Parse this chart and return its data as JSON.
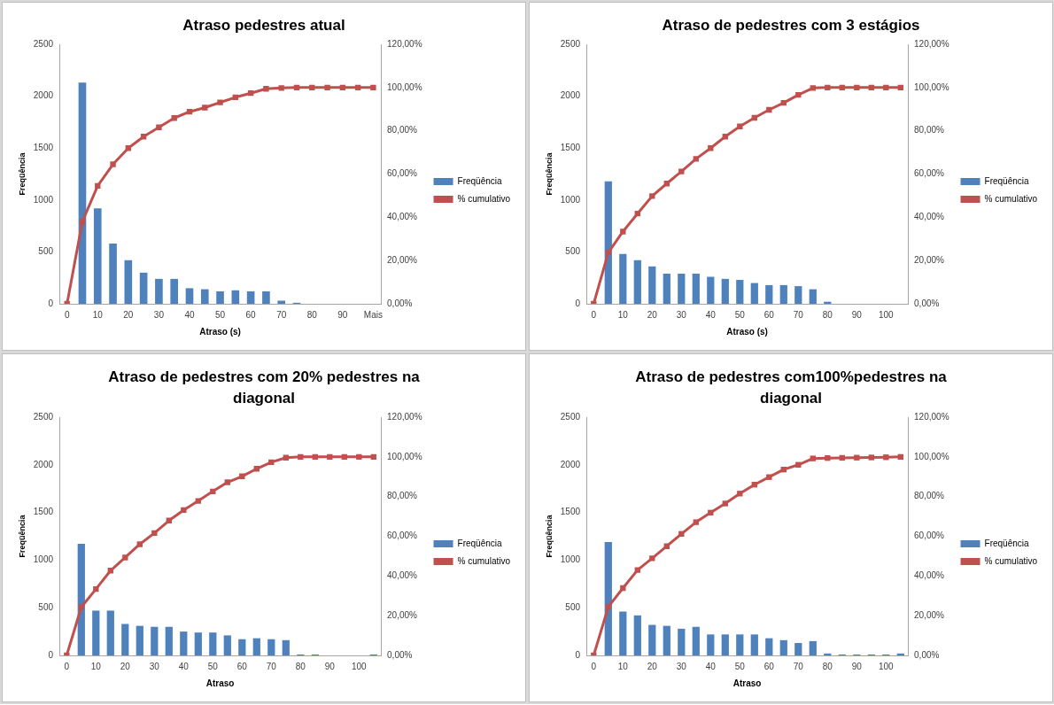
{
  "chart_data": [
    {
      "type": "bar",
      "title": "Atraso pedestres atual",
      "xlabel": "Atraso (s)",
      "ylabel": "Freqüência",
      "categories": [
        "0",
        null,
        "10",
        null,
        "20",
        null,
        "30",
        null,
        "40",
        null,
        "50",
        null,
        "60",
        null,
        "70",
        null,
        "80",
        null,
        "90",
        null,
        "Mais"
      ],
      "ylim": [
        0,
        2500
      ],
      "yticks": [
        0,
        500,
        1000,
        1500,
        2000,
        2500
      ],
      "y2lim": [
        0,
        120
      ],
      "y2ticks": [
        {
          "value": 0,
          "label": "0,00%"
        },
        {
          "value": 20,
          "label": "20,00%"
        },
        {
          "value": 40,
          "label": "40,00%"
        },
        {
          "value": 60,
          "label": "60,00%"
        },
        {
          "value": 80,
          "label": "80,00%"
        },
        {
          "value": 100,
          "label": "100,00%"
        },
        {
          "value": 120,
          "label": "120,00%"
        }
      ],
      "legend": "right",
      "marker": "square",
      "series": [
        {
          "name": "Freqüência",
          "color": "#4f81bd",
          "values": [
            0,
            2130,
            920,
            580,
            420,
            300,
            240,
            240,
            150,
            140,
            120,
            130,
            120,
            120,
            30,
            10,
            0,
            0,
            0,
            0,
            0
          ]
        },
        {
          "type": "line",
          "axis": "y2",
          "name": "% cumulativo",
          "color": "#c0504d",
          "values": [
            0,
            38,
            54.5,
            64.5,
            72,
            77.3,
            81.6,
            85.9,
            88.8,
            90.7,
            93.1,
            95.5,
            97.4,
            99.4,
            99.8,
            100,
            100,
            100,
            100,
            100,
            100
          ]
        }
      ]
    },
    {
      "type": "bar",
      "title": "Atraso de pedestres com 3 estágios",
      "xlabel": "Atraso (s)",
      "ylabel": "Freqüência",
      "categories": [
        "0",
        null,
        "10",
        null,
        "20",
        null,
        "30",
        null,
        "40",
        null,
        "50",
        null,
        "60",
        null,
        "70",
        null,
        "80",
        null,
        "90",
        null,
        "100",
        null
      ],
      "ylim": [
        0,
        2500
      ],
      "yticks": [
        0,
        500,
        1000,
        1500,
        2000,
        2500
      ],
      "y2lim": [
        0,
        120
      ],
      "y2ticks": [
        {
          "value": 0,
          "label": "0,00%"
        },
        {
          "value": 20,
          "label": "20,00%"
        },
        {
          "value": 40,
          "label": "40,00%"
        },
        {
          "value": 60,
          "label": "60,00%"
        },
        {
          "value": 80,
          "label": "80,00%"
        },
        {
          "value": 100,
          "label": "100,00%"
        },
        {
          "value": 120,
          "label": "120,00%"
        }
      ],
      "legend": "right",
      "marker": "square",
      "series": [
        {
          "name": "Freqüência",
          "color": "#4f81bd",
          "values": [
            0,
            1180,
            480,
            420,
            360,
            290,
            290,
            290,
            260,
            240,
            230,
            200,
            180,
            180,
            170,
            140,
            20,
            0,
            0,
            0,
            0,
            0
          ]
        },
        {
          "type": "line",
          "axis": "y2",
          "name": "% cumulativo",
          "color": "#c0504d",
          "values": [
            0,
            23.7,
            33.4,
            41.7,
            49.8,
            55.6,
            61.2,
            67,
            72,
            77.3,
            82,
            86,
            89.7,
            92.9,
            96.6,
            99.8,
            100,
            100,
            100,
            100,
            100,
            100
          ]
        }
      ]
    },
    {
      "type": "bar",
      "title": "Atraso de pedestres com 20% pedestres na diagonal",
      "xlabel": "Atraso",
      "ylabel": "Freqüência",
      "categories": [
        "0",
        null,
        "10",
        null,
        "20",
        null,
        "30",
        null,
        "40",
        null,
        "50",
        null,
        "60",
        null,
        "70",
        null,
        "80",
        null,
        "90",
        null,
        "100",
        null
      ],
      "ylim": [
        0,
        2500
      ],
      "yticks": [
        0,
        500,
        1000,
        1500,
        2000,
        2500
      ],
      "y2lim": [
        0,
        120
      ],
      "y2ticks": [
        {
          "value": 0,
          "label": "0,00%"
        },
        {
          "value": 20,
          "label": "20,00%"
        },
        {
          "value": 40,
          "label": "40,00%"
        },
        {
          "value": 60,
          "label": "60,00%"
        },
        {
          "value": 80,
          "label": "80,00%"
        },
        {
          "value": 100,
          "label": "100,00%"
        },
        {
          "value": 120,
          "label": "120,00%"
        }
      ],
      "legend": "right",
      "marker": "square",
      "series": [
        {
          "name": "Freqüência",
          "color": "#4f81bd",
          "values": [
            0,
            1170,
            470,
            470,
            330,
            310,
            300,
            300,
            250,
            240,
            240,
            210,
            170,
            180,
            170,
            160,
            10,
            10,
            0,
            0,
            0,
            10
          ]
        },
        {
          "type": "line",
          "axis": "y2",
          "name": "% cumulativo",
          "color": "#c0504d",
          "values": [
            0,
            24.3,
            33.4,
            42.7,
            49.3,
            56,
            61.6,
            67.9,
            73.2,
            77.8,
            82.6,
            87.2,
            90.2,
            94,
            97.3,
            99.6,
            100,
            100,
            100,
            100,
            100,
            100
          ]
        }
      ]
    },
    {
      "type": "bar",
      "title": "Atraso de pedestres com100%pedestres na diagonal",
      "xlabel": "Atraso",
      "ylabel": "Freqüência",
      "categories": [
        "0",
        null,
        "10",
        null,
        "20",
        null,
        "30",
        null,
        "40",
        null,
        "50",
        null,
        "60",
        null,
        "70",
        null,
        "80",
        null,
        "90",
        null,
        "100",
        null
      ],
      "ylim": [
        0,
        2500
      ],
      "yticks": [
        0,
        500,
        1000,
        1500,
        2000,
        2500
      ],
      "y2lim": [
        0,
        120
      ],
      "y2ticks": [
        {
          "value": 0,
          "label": "0,00%"
        },
        {
          "value": 20,
          "label": "20,00%"
        },
        {
          "value": 40,
          "label": "40,00%"
        },
        {
          "value": 60,
          "label": "60,00%"
        },
        {
          "value": 80,
          "label": "80,00%"
        },
        {
          "value": 100,
          "label": "100,00%"
        },
        {
          "value": 120,
          "label": "120,00%"
        }
      ],
      "legend": "right",
      "marker": "square",
      "series": [
        {
          "name": "Freqüência",
          "color": "#4f81bd",
          "values": [
            0,
            1190,
            460,
            420,
            320,
            310,
            280,
            300,
            220,
            220,
            220,
            220,
            180,
            160,
            130,
            150,
            20,
            10,
            10,
            10,
            10,
            20
          ]
        },
        {
          "type": "line",
          "axis": "y2",
          "name": "% cumulativo",
          "color": "#c0504d",
          "values": [
            0,
            24.5,
            33.9,
            43,
            48.9,
            55,
            61.2,
            67.1,
            71.9,
            76.5,
            81.5,
            86,
            89.8,
            93.6,
            96,
            99.2,
            99.4,
            99.5,
            99.6,
            99.7,
            99.8,
            100
          ]
        }
      ]
    }
  ]
}
